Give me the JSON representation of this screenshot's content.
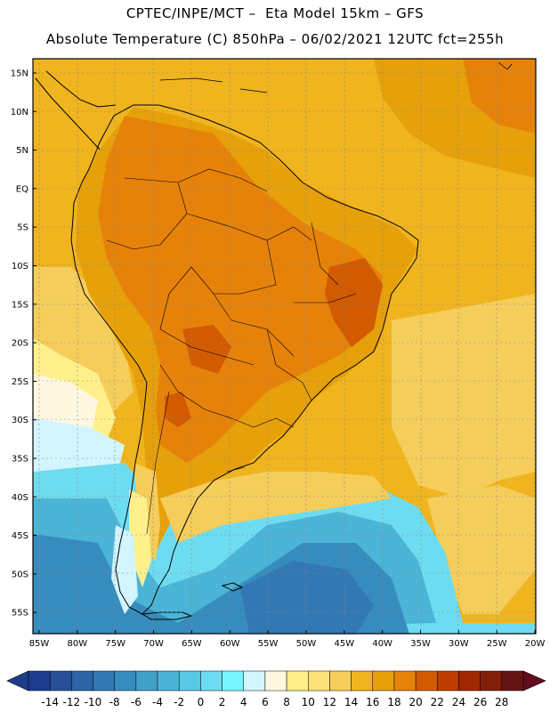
{
  "header": {
    "line1": "CPTEC/INPE/MCT –  Eta Model 15km – GFS",
    "line2": "Absolute Temperature (C) 850hPa – 06/02/2021 12UTC fct=255h"
  },
  "map": {
    "lat_ticks": [
      "15N",
      "10N",
      "5N",
      "EQ",
      "5S",
      "10S",
      "15S",
      "20S",
      "25S",
      "30S",
      "35S",
      "40S",
      "45S",
      "50S",
      "55S"
    ],
    "lon_ticks": [
      "85W",
      "80W",
      "75W",
      "70W",
      "65W",
      "60W",
      "55W",
      "50W",
      "45W",
      "40W",
      "35W",
      "30W",
      "25W",
      "20W"
    ]
  },
  "colorbar": {
    "labels": [
      "-14",
      "-12",
      "-10",
      "-8",
      "-6",
      "-4",
      "-2",
      "0",
      "2",
      "4",
      "6",
      "8",
      "10",
      "12",
      "14",
      "16",
      "18",
      "20",
      "22",
      "24",
      "26",
      "28"
    ],
    "colors": [
      "#1e3c8c",
      "#285096",
      "#2d64a5",
      "#3278b4",
      "#378cbe",
      "#41a0c8",
      "#4bb4d7",
      "#5ac8e6",
      "#6edcf0",
      "#78f5ff",
      "#d2f5ff",
      "#fff8e1",
      "#fff08c",
      "#fae178",
      "#f5cd5a",
      "#f0b41e",
      "#e6a00a",
      "#e6820a",
      "#d25a00",
      "#be3c00",
      "#a02800",
      "#821e0a",
      "#641414"
    ],
    "low_arrow_color": "#1e3c8c",
    "high_arrow_color": "#640a1e"
  },
  "palette": {
    "ocean_warm": "#f0b41e",
    "land_warm": "#e6a00a",
    "hot_land": "#e6820a",
    "very_hot": "#d25a00",
    "mild": "#f5cd5a",
    "cool_pale": "#fff08c",
    "cream": "#fff8e1",
    "ice": "#d2f5ff",
    "cyan": "#6edcf0",
    "sky": "#4bb4d7",
    "blue": "#378cbe",
    "deep_blue": "#3278b4",
    "frame": "#000000",
    "grid": "#888888"
  }
}
